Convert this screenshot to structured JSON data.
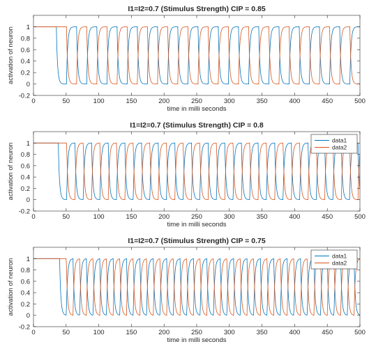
{
  "chart_data": [
    {
      "type": "line",
      "title": "I1=I2=0.7 (Stimulus Strength) CIP = 0.85",
      "xlabel": "time in milli seconds",
      "ylabel": "activation of neuron",
      "xlim": [
        0,
        500
      ],
      "ylim": [
        -0.2,
        1.2
      ],
      "xticks": [
        "0",
        "50",
        "100",
        "150",
        "200",
        "250",
        "300",
        "350",
        "400",
        "450",
        "500"
      ],
      "yticks": [
        "-0.2",
        "0",
        "0.2",
        "0.4",
        "0.6",
        "0.8",
        "1"
      ],
      "legend": null,
      "series": [
        {
          "color": "#0072BD",
          "start_time": 35,
          "period": 31,
          "description": "stays at 1 until t≈35 then alternates between 1 and 0"
        },
        {
          "color": "#D95319",
          "start_time": 35,
          "period": 31,
          "description": "antiphase to series 1"
        }
      ]
    },
    {
      "type": "line",
      "title": "I1=I2=0.7 (Stimulus Strength) CIP = 0.8",
      "xlabel": "time in milli seconds",
      "ylabel": "activation of neuron",
      "xlim": [
        0,
        500
      ],
      "ylim": [
        -0.2,
        1.2
      ],
      "xticks": [
        "0",
        "50",
        "100",
        "150",
        "200",
        "250",
        "300",
        "350",
        "400",
        "450",
        "500"
      ],
      "yticks": [
        "-0.2",
        "0",
        "0.2",
        "0.4",
        "0.6",
        "0.8",
        "1"
      ],
      "legend": {
        "placement": "top-right",
        "entries": [
          "data1",
          "data2"
        ]
      },
      "series": [
        {
          "name": "data1",
          "color": "#0072BD",
          "start_time": 38,
          "period": 25.5,
          "description": "oscillation between 0 and 1"
        },
        {
          "name": "data2",
          "color": "#D95319",
          "start_time": 38,
          "period": 25.5,
          "description": "antiphase to data1"
        }
      ]
    },
    {
      "type": "line",
      "title": "I1=I2=0.7 (Stimulus Strength) CIP = 0.75",
      "xlabel": "time in milli seconds",
      "ylabel": "activation of neuron",
      "xlim": [
        0,
        500
      ],
      "ylim": [
        -0.2,
        1.2
      ],
      "xticks": [
        "0",
        "50",
        "100",
        "150",
        "200",
        "250",
        "300",
        "350",
        "400",
        "450",
        "500"
      ],
      "yticks": [
        "-0.2",
        "0",
        "0.2",
        "0.4",
        "0.6",
        "0.8",
        "1"
      ],
      "legend": {
        "placement": "top-right",
        "entries": [
          "data1",
          "data2"
        ]
      },
      "series": [
        {
          "name": "data1",
          "color": "#0072BD",
          "start_time": 40,
          "period": 20.5,
          "description": "oscillation between 0 and 1"
        },
        {
          "name": "data2",
          "color": "#D95319",
          "start_time": 40,
          "period": 20.5,
          "description": "antiphase to data1"
        }
      ]
    }
  ]
}
